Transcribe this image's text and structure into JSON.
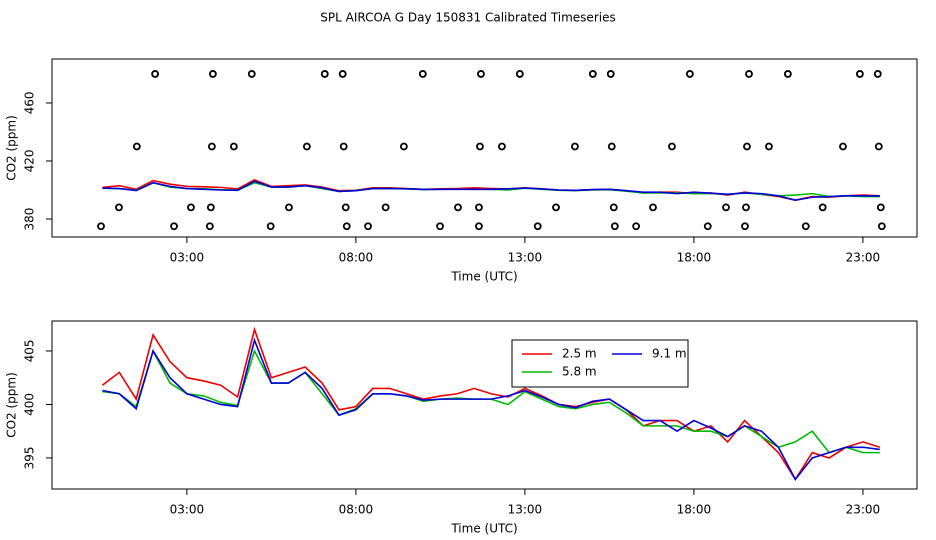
{
  "chart_data": [
    {
      "type": "line",
      "title": "SPL AIRCOA G  Day 150831  Calibrated Timeseries",
      "x_label": "Time (UTC)",
      "y_label": "CO2 (ppm)",
      "xlim": [
        -0.99,
        24.6
      ],
      "ylim": [
        367.6,
        490.3
      ],
      "xticks": [
        {
          "value": 3,
          "label": "03:00"
        },
        {
          "value": 8,
          "label": "08:00"
        },
        {
          "value": 13,
          "label": "13:00"
        },
        {
          "value": 18,
          "label": "18:00"
        },
        {
          "value": 23,
          "label": "23:00"
        }
      ],
      "yticks": [
        380,
        420,
        460
      ],
      "x": [
        0.5,
        1,
        1.5,
        2,
        2.5,
        3,
        3.5,
        4,
        4.5,
        5,
        5.5,
        6,
        6.5,
        7,
        7.5,
        8,
        8.5,
        9,
        9.5,
        10,
        10.5,
        11,
        11.5,
        12,
        12.5,
        13,
        13.5,
        14,
        14.5,
        15,
        15.5,
        16,
        16.5,
        17,
        17.5,
        18,
        18.5,
        19,
        19.5,
        20,
        20.5,
        21,
        21.5,
        22,
        22.5,
        23,
        23.5
      ],
      "series": [
        {
          "color": "#ee0000",
          "values": [
            401.8,
            403,
            400.5,
            406.5,
            404,
            402.5,
            402.2,
            401.8,
            400.7,
            407,
            402.5,
            403,
            403.5,
            402,
            399.5,
            399.8,
            401.5,
            401.5,
            401,
            400.5,
            400.8,
            401,
            401.5,
            401,
            400.7,
            401.5,
            400.8,
            400,
            399.8,
            400.2,
            400.5,
            399.5,
            398,
            398.5,
            398.5,
            397.5,
            398,
            396.5,
            398.5,
            397,
            395.5,
            393,
            395.5,
            395,
            396,
            396.5,
            396
          ]
        },
        {
          "color": "#00bb00",
          "values": [
            401.2,
            401,
            399.8,
            405,
            402,
            401,
            400.8,
            400.2,
            399.9,
            405,
            402,
            402,
            403,
            401,
            399,
            399.6,
            401,
            401,
            400.8,
            400.3,
            400.5,
            400.6,
            400.5,
            400.5,
            400,
            401.2,
            400.5,
            399.8,
            399.6,
            400,
            400.2,
            399.2,
            398,
            398,
            398,
            397.5,
            397.5,
            397,
            398,
            397,
            396,
            396.5,
            397.5,
            395.5,
            396,
            395.5,
            395.5
          ]
        },
        {
          "color": "#0000dd",
          "values": [
            401.3,
            401,
            399.6,
            405,
            402.5,
            401,
            400.5,
            400,
            399.8,
            406,
            402,
            402,
            403,
            401.5,
            399,
            399.5,
            401,
            401,
            400.8,
            400.4,
            400.5,
            400.5,
            400.5,
            400.5,
            400.8,
            401.3,
            400.7,
            400,
            399.7,
            400.3,
            400.5,
            399.5,
            398.5,
            398.5,
            397.5,
            398.5,
            397.8,
            397,
            398,
            397.5,
            396,
            393,
            395,
            395.5,
            396,
            396,
            395.8
          ]
        }
      ],
      "points": {
        "x": [
          2.06,
          3.77,
          4.92,
          7.08,
          7.61,
          9.98,
          11.7,
          12.85,
          15.01,
          15.54,
          17.88,
          19.63,
          20.78,
          22.91,
          23.44,
          1.52,
          3.74,
          4.39,
          6.55,
          7.64,
          9.42,
          11.67,
          12.32,
          14.48,
          15.57,
          17.35,
          19.57,
          20.22,
          22.41,
          23.47,
          0.99,
          3.12,
          3.71,
          6.02,
          7.7,
          8.88,
          11.02,
          11.64,
          13.92,
          15.63,
          16.79,
          18.95,
          19.54,
          21.81,
          23.53,
          0.46,
          2.62,
          3.68,
          5.48,
          7.73,
          8.36,
          10.49,
          11.64,
          13.38,
          15.66,
          16.29,
          18.41,
          19.51,
          21.31,
          23.56
        ],
        "y": [
          480,
          480,
          480,
          480,
          480,
          480,
          480,
          480,
          480,
          480,
          480,
          480,
          480,
          480,
          480,
          430,
          430,
          430,
          430,
          430,
          430,
          430,
          430,
          430,
          430,
          430,
          430,
          430,
          430,
          430,
          388,
          388,
          388,
          388,
          388,
          388,
          388,
          388,
          388,
          388,
          388,
          388,
          388,
          388,
          388,
          375,
          375,
          375,
          375,
          375,
          375,
          375,
          375,
          375,
          375,
          375,
          375,
          375,
          375,
          375
        ]
      }
    },
    {
      "type": "line",
      "x_label": "Time (UTC)",
      "y_label": "CO2 (ppm)",
      "legend": "top",
      "xlim": [
        -0.99,
        24.6
      ],
      "ylim": [
        392.1,
        407.8
      ],
      "xticks": [
        {
          "value": 3,
          "label": "03:00"
        },
        {
          "value": 8,
          "label": "08:00"
        },
        {
          "value": 13,
          "label": "13:00"
        },
        {
          "value": 18,
          "label": "18:00"
        },
        {
          "value": 23,
          "label": "23:00"
        }
      ],
      "yticks": [
        395,
        400,
        405
      ],
      "x": [
        0.5,
        1,
        1.5,
        2,
        2.5,
        3,
        3.5,
        4,
        4.5,
        5,
        5.5,
        6,
        6.5,
        7,
        7.5,
        8,
        8.5,
        9,
        9.5,
        10,
        10.5,
        11,
        11.5,
        12,
        12.5,
        13,
        13.5,
        14,
        14.5,
        15,
        15.5,
        16,
        16.5,
        17,
        17.5,
        18,
        18.5,
        19,
        19.5,
        20,
        20.5,
        21,
        21.5,
        22,
        22.5,
        23,
        23.5
      ],
      "series": [
        {
          "name": "2.5 m",
          "color": "#ee0000",
          "values": [
            401.8,
            403,
            400.5,
            406.5,
            404,
            402.5,
            402.2,
            401.8,
            400.7,
            407,
            402.5,
            403,
            403.5,
            402,
            399.5,
            399.8,
            401.5,
            401.5,
            401,
            400.5,
            400.8,
            401,
            401.5,
            401,
            400.7,
            401.5,
            400.8,
            400,
            399.8,
            400.2,
            400.5,
            399.5,
            398,
            398.5,
            398.5,
            397.5,
            398,
            396.5,
            398.5,
            397,
            395.5,
            393,
            395.5,
            395,
            396,
            396.5,
            396
          ]
        },
        {
          "name": "5.8 m",
          "color": "#00bb00",
          "values": [
            401.2,
            401,
            399.8,
            405,
            402,
            401,
            400.8,
            400.2,
            399.9,
            405,
            402,
            402,
            403,
            401,
            399,
            399.6,
            401,
            401,
            400.8,
            400.3,
            400.5,
            400.6,
            400.5,
            400.5,
            400,
            401.2,
            400.5,
            399.8,
            399.6,
            400,
            400.2,
            399.2,
            398,
            398,
            398,
            397.5,
            397.5,
            397,
            398,
            397,
            396,
            396.5,
            397.5,
            395.5,
            396,
            395.5,
            395.5
          ]
        },
        {
          "name": "9.1 m",
          "color": "#0000dd",
          "values": [
            401.3,
            401,
            399.6,
            405,
            402.5,
            401,
            400.5,
            400,
            399.8,
            406,
            402,
            402,
            403,
            401.5,
            399,
            399.5,
            401,
            401,
            400.8,
            400.4,
            400.5,
            400.5,
            400.5,
            400.5,
            400.8,
            401.3,
            400.7,
            400,
            399.7,
            400.3,
            400.5,
            399.5,
            398.5,
            398.5,
            397.5,
            398.5,
            397.8,
            397,
            398,
            397.5,
            396,
            393,
            395,
            395.5,
            396,
            396,
            395.8
          ]
        }
      ]
    }
  ]
}
